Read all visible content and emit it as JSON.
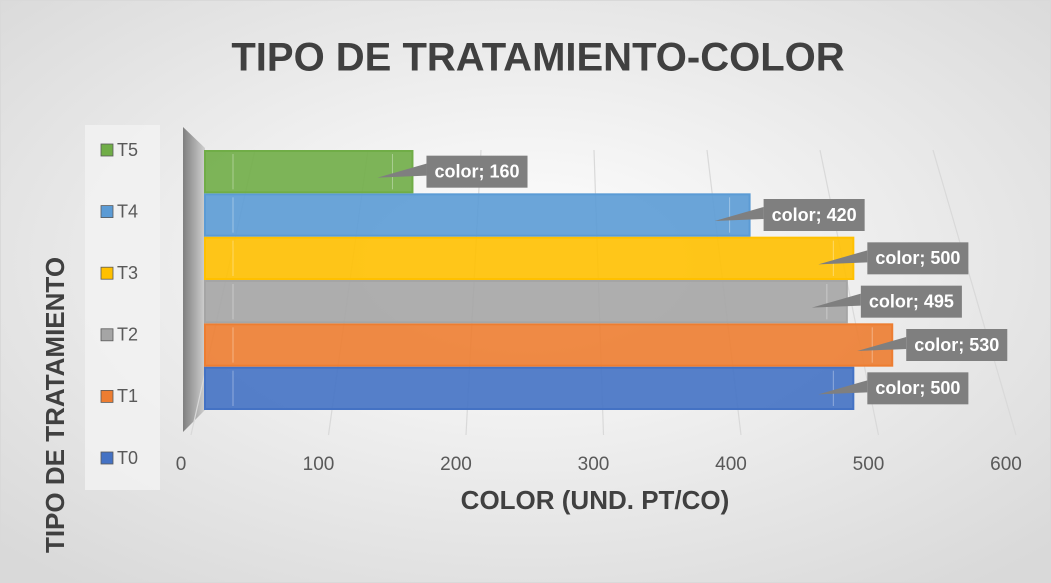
{
  "chart_data": {
    "type": "bar",
    "orientation": "horizontal",
    "title": "TIPO DE TRATAMIENTO-COLOR",
    "x_label": "COLOR (UND. PT/CO)",
    "y_label": "TIPO DE TRATAMIENTO",
    "categories": [
      "T0",
      "T1",
      "T2",
      "T3",
      "T4",
      "T5"
    ],
    "values": [
      500,
      530,
      495,
      500,
      420,
      160
    ],
    "value_labels": [
      "color; 500",
      "color; 530",
      "color; 495",
      "color; 500",
      "color; 420",
      "color; 160"
    ],
    "colors": [
      "#4472c4",
      "#ed7d31",
      "#a5a5a5",
      "#ffc000",
      "#5b9bd5",
      "#70ad47"
    ],
    "xlim": [
      0,
      600
    ],
    "xticks": [
      0,
      100,
      200,
      300,
      400,
      500,
      600
    ],
    "grid": true,
    "legend": "left"
  }
}
